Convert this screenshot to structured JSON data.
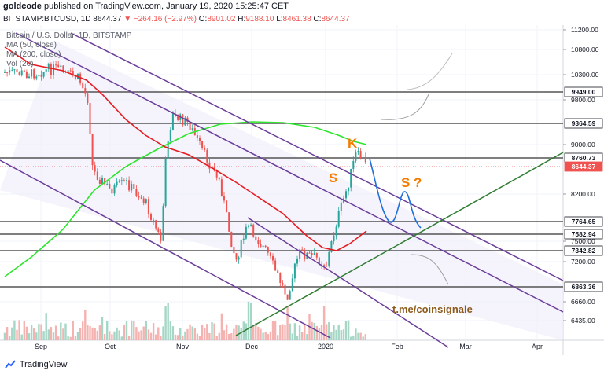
{
  "header": {
    "user": "goldcode",
    "published_text": "published on TradingView.com, January 19, 2020 15:25:47 CET"
  },
  "symbol_bar": {
    "symbol": "BITSTAMP:BTCUSD, 1D",
    "last": "8644.37",
    "change": "−264.16 (−2.97%)",
    "o_label": "O:",
    "o": "8901.02",
    "h_label": "H:",
    "h": "9188.10",
    "l_label": "L:",
    "l": "8461.38",
    "c_label": "C:",
    "c": "8644.37"
  },
  "legend": {
    "title": "Bitcoin / U.S. Dollar, 1D, BITSTAMP",
    "ma50": "MA (50, close)",
    "ma200": "MA (200, close)",
    "vol": "Vol (20)"
  },
  "annotations": {
    "k": "K",
    "s1": "S",
    "s2": "S ?",
    "watermark": "t.me/coinsignale"
  },
  "footer": {
    "brand": "TradingView"
  },
  "colors": {
    "up": "#26a69a",
    "down": "#ef5350",
    "ma50": "#e51c23",
    "ma200": "#2ee52e",
    "channel": "#6a3d9a",
    "support": "#2e7d32",
    "level": "#555555",
    "projection_blue": "#1565c0",
    "projection_grey": "#9e9e9e",
    "annotation_orange": "#f57c00",
    "watermark": "#8d5a1a"
  },
  "chart_data": {
    "type": "candlestick",
    "x_ticks": [
      "Sep",
      "Oct",
      "Nov",
      "Dec",
      "2020",
      "Feb",
      "Mar",
      "Apr"
    ],
    "y_ticks": [
      "11200.00",
      "10800.00",
      "10300.00",
      "9800.00",
      "9000.00",
      "8200.00",
      "7500.00",
      "7200.00",
      "6660.00",
      "6435.00"
    ],
    "y_log": true,
    "y_range": [
      6300,
      11400
    ],
    "price_levels": [
      {
        "value": "9949.00",
        "highlight": false
      },
      {
        "value": "9364.59",
        "highlight": false
      },
      {
        "value": "8760.73",
        "highlight": false
      },
      {
        "value": "8644.37",
        "highlight": true
      },
      {
        "value": "7764.65",
        "highlight": false
      },
      {
        "value": "7582.94",
        "highlight": false
      },
      {
        "value": "7342.82",
        "highlight": false
      },
      {
        "value": "6863.36",
        "highlight": false
      }
    ]
  }
}
